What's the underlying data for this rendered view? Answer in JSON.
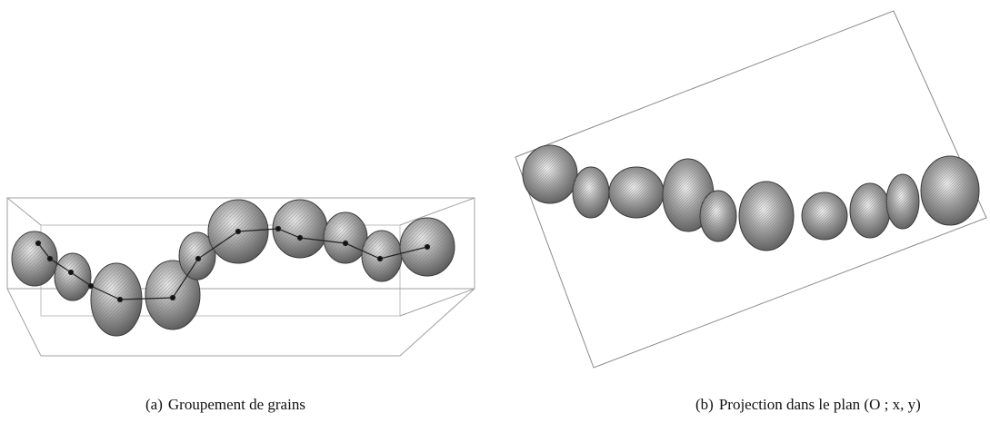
{
  "figure": {
    "panels": [
      {
        "id": "a",
        "tag": "(a)",
        "caption": "Groupement de grains"
      },
      {
        "id": "b",
        "tag": "(b)",
        "caption": "Projection dans le plan (O ; x, y)"
      }
    ],
    "colors": {
      "background": "#ffffff",
      "grain_fill": "#8c8c8c",
      "grain_edge": "#4a4a4a",
      "box_line": "#9a9a9a",
      "skeleton_line": "#222222"
    }
  }
}
